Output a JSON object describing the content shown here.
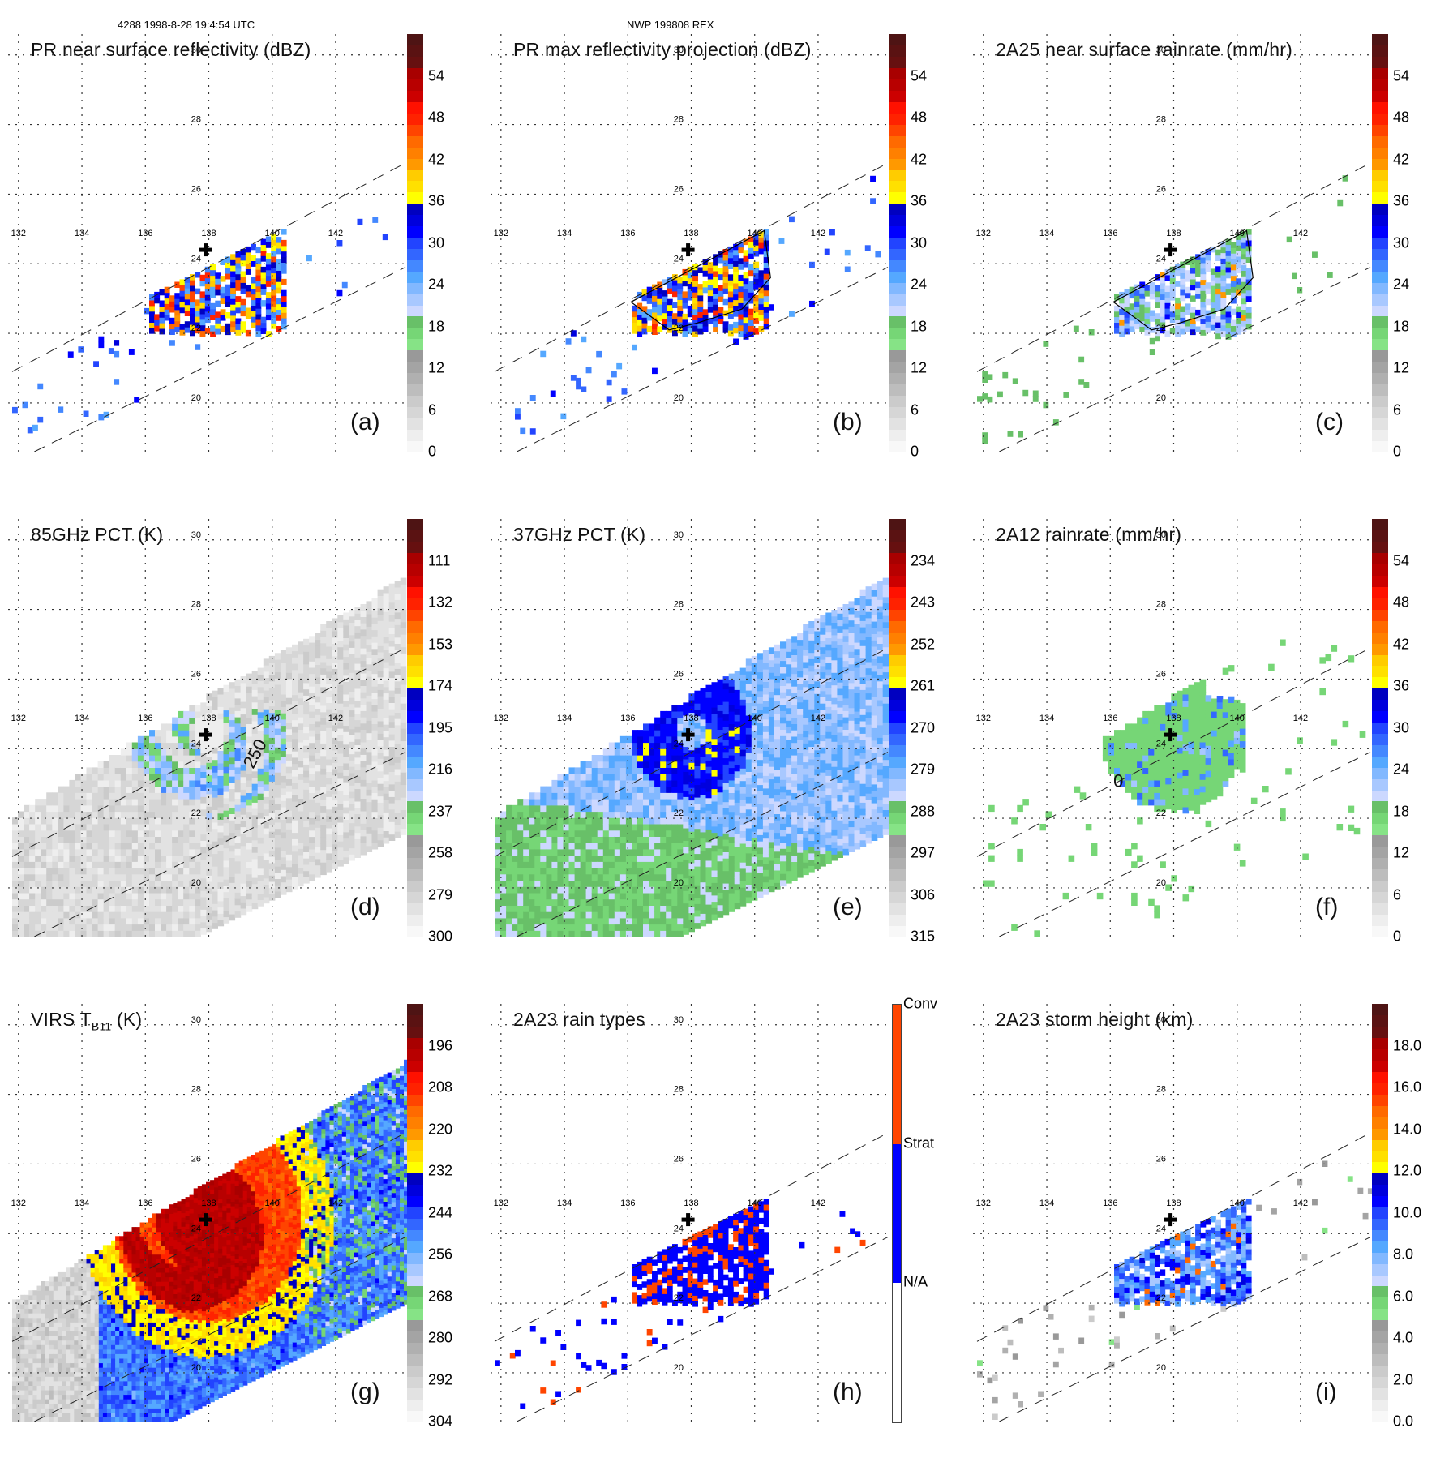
{
  "header": {
    "left_caption": "4288 1998-8-28 19:4:54 UTC",
    "center_caption": "NWP 199808 REX"
  },
  "map": {
    "lon_ticks": [
      "132",
      "134",
      "136",
      "138",
      "140",
      "142"
    ],
    "lat_ticks": [
      "30",
      "28",
      "26",
      "24",
      "22",
      "20"
    ],
    "lon_range": [
      131.8,
      144.2
    ],
    "lat_range": [
      18.6,
      30.6
    ],
    "storm_center": {
      "lon": 137.9,
      "lat": 24.4,
      "marker": "cross-icon"
    }
  },
  "chart_data": [
    {
      "id": "a",
      "type": "heatmap",
      "label": "(a)",
      "title": "PR near surface reflectivity (dBZ)",
      "colorbar": {
        "ticks": [
          "54",
          "48",
          "42",
          "36",
          "30",
          "24",
          "18",
          "12",
          "6",
          "0"
        ],
        "range": [
          0,
          60
        ],
        "unit": "dBZ"
      },
      "swath": "pr",
      "field": "pr_reflectivity"
    },
    {
      "id": "b",
      "type": "heatmap",
      "label": "(b)",
      "title": "PR max reflectivity projection (dBZ)",
      "colorbar": {
        "ticks": [
          "54",
          "48",
          "42",
          "36",
          "30",
          "24",
          "18",
          "12",
          "6",
          "0"
        ],
        "range": [
          0,
          60
        ],
        "unit": "dBZ"
      },
      "swath": "pr",
      "field": "pr_max_reflectivity"
    },
    {
      "id": "c",
      "type": "heatmap",
      "label": "(c)",
      "title": "2A25 near surface rainrate (mm/hr)",
      "colorbar": {
        "ticks": [
          "54",
          "48",
          "42",
          "36",
          "30",
          "24",
          "18",
          "12",
          "6",
          "0"
        ],
        "range": [
          0,
          60
        ],
        "unit": "mm/hr"
      },
      "swath": "pr",
      "field": "rainrate_2a25"
    },
    {
      "id": "d",
      "type": "heatmap",
      "label": "(d)",
      "title": "85GHz PCT (K)",
      "colorbar": {
        "ticks": [
          "111",
          "132",
          "153",
          "174",
          "195",
          "216",
          "237",
          "258",
          "279",
          "300"
        ],
        "range": [
          300,
          90
        ],
        "unit": "K"
      },
      "swath": "tmi",
      "field": "pct85",
      "contour_label": "250"
    },
    {
      "id": "e",
      "type": "heatmap",
      "label": "(e)",
      "title": "37GHz PCT (K)",
      "colorbar": {
        "ticks": [
          "234",
          "243",
          "252",
          "261",
          "270",
          "279",
          "288",
          "297",
          "306",
          "315"
        ],
        "range": [
          315,
          225
        ],
        "unit": "K"
      },
      "swath": "tmi",
      "field": "pct37"
    },
    {
      "id": "f",
      "type": "heatmap",
      "label": "(f)",
      "title": "2A12 rainrate (mm/hr)",
      "colorbar": {
        "ticks": [
          "54",
          "48",
          "42",
          "36",
          "30",
          "24",
          "18",
          "12",
          "6",
          "0"
        ],
        "range": [
          0,
          60
        ],
        "unit": "mm/hr"
      },
      "swath": "tmi",
      "field": "rainrate_2a12",
      "contour_label": "0"
    },
    {
      "id": "g",
      "type": "heatmap",
      "label": "(g)",
      "title": "VIRS T",
      "title_sub": "B11",
      "title_suffix": " (K)",
      "colorbar": {
        "ticks": [
          "196",
          "208",
          "220",
          "232",
          "244",
          "256",
          "268",
          "280",
          "292",
          "304"
        ],
        "range": [
          304,
          184
        ],
        "unit": "K"
      },
      "swath": "virs",
      "field": "virs_tb11"
    },
    {
      "id": "h",
      "type": "heatmap",
      "label": "(h)",
      "title": "2A23 rain types",
      "colorbar": {
        "categorical": true,
        "categories": [
          "Conv",
          "Strat",
          "N/A"
        ],
        "colors": [
          "#ff4500",
          "#0000ff",
          "#ffffff"
        ]
      },
      "swath": "pr",
      "field": "rain_type"
    },
    {
      "id": "i",
      "type": "heatmap",
      "label": "(i)",
      "title": "2A23 storm height (km)",
      "colorbar": {
        "ticks": [
          "18.0",
          "16.0",
          "14.0",
          "12.0",
          "10.0",
          "8.0",
          "6.0",
          "4.0",
          "2.0",
          "0.0"
        ],
        "range": [
          0,
          20
        ],
        "unit": "km"
      },
      "swath": "pr",
      "field": "storm_height"
    }
  ],
  "palette": [
    "#f8f8f8",
    "#eeeeee",
    "#e2e2e2",
    "#d6d6d6",
    "#cbcbcb",
    "#bdbdbd",
    "#b0b0b0",
    "#a4a4a4",
    "#999999",
    "#86e386",
    "#76d676",
    "#68c068",
    "#ccd8ff",
    "#a8c8ff",
    "#82b8ff",
    "#55a8ff",
    "#4488ff",
    "#3366ff",
    "#2244ff",
    "#0000ff",
    "#0000dd",
    "#0000c0",
    "#ffff00",
    "#ffe000",
    "#ffcc00",
    "#ff9900",
    "#ff8000",
    "#ff6a00",
    "#ff4400",
    "#ff2200",
    "#ff1100",
    "#cc0000",
    "#b80000",
    "#a80000",
    "#661010",
    "#5a1212",
    "#4e1414"
  ]
}
